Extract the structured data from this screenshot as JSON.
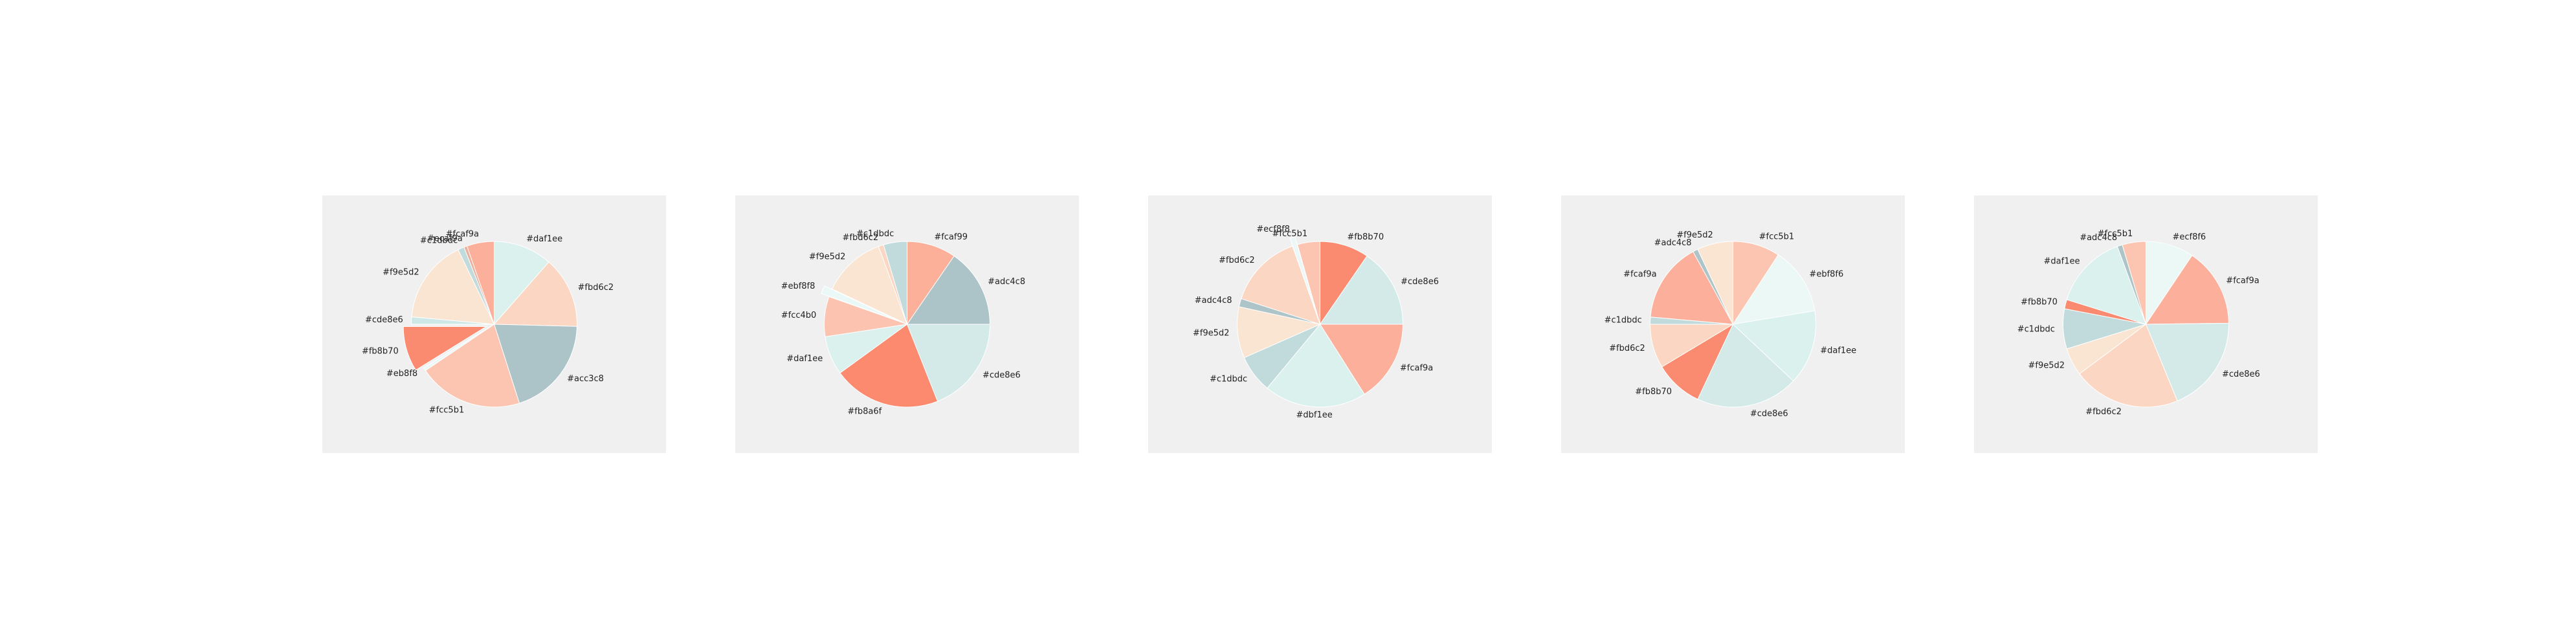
{
  "chart_data": [
    {
      "type": "pie",
      "start_angle": 90,
      "counterclock": false,
      "background": "#f0f0f0",
      "slices": [
        {
          "label": "#daf1ee",
          "value": 11.2,
          "color": "#daf1ee",
          "explode": 0
        },
        {
          "label": "#fbd6c2",
          "value": 13.6,
          "color": "#fbd6c2",
          "explode": 0
        },
        {
          "label": "#acc3c8",
          "value": 19.2,
          "color": "#acc3c8",
          "explode": 0
        },
        {
          "label": "#fcc5b1",
          "value": 20.0,
          "color": "#fcc5b1",
          "explode": 0
        },
        {
          "label": "#eb8f8",
          "value": 0.6,
          "color": "#ebf8f8",
          "explode": 0
        },
        {
          "label": "#fb8b70",
          "value": 8.6,
          "color": "#fb8b70",
          "explode": 0.1
        },
        {
          "label": "#cde8e6",
          "value": 1.4,
          "color": "#cde8e6",
          "explode": 0
        },
        {
          "label": "#f9e5d2",
          "value": 16.0,
          "color": "#f9e5d2",
          "explode": 0
        },
        {
          "label": "#c1dbdc",
          "value": 1.2,
          "color": "#c1dbdc",
          "explode": 0
        },
        {
          "label": "#ecaf9a",
          "value": 0.6,
          "color": "#ecaf9a",
          "explode": 0
        },
        {
          "label": "#fcaf9a",
          "value": 5.2,
          "color": "#fcaf9a",
          "explode": 0
        }
      ]
    },
    {
      "type": "pie",
      "start_angle": 90,
      "counterclock": false,
      "background": "#f0f0f0",
      "slices": [
        {
          "label": "#fcaf99",
          "value": 9.6,
          "color": "#fcaf99",
          "explode": 0
        },
        {
          "label": "#adc4c8",
          "value": 15.4,
          "color": "#acc3c8",
          "explode": 0
        },
        {
          "label": "#cde8e6",
          "value": 19.0,
          "color": "#d3eae8",
          "explode": 0
        },
        {
          "label": "#fb8a6f",
          "value": 21.0,
          "color": "#fb8a6f",
          "explode": 0
        },
        {
          "label": "#daf1ee",
          "value": 7.6,
          "color": "#daf1ee",
          "explode": 0
        },
        {
          "label": "#fcc4b0",
          "value": 7.8,
          "color": "#fcc4b0",
          "explode": 0
        },
        {
          "label": "#ebf8f8",
          "value": 1.6,
          "color": "#ebf8f8",
          "explode": 0.1
        },
        {
          "label": "#f9e5d2",
          "value": 12.4,
          "color": "#f9e5d2",
          "explode": 0
        },
        {
          "label": "#fbd6c2",
          "value": 1.0,
          "color": "#fbd6c2",
          "explode": 0
        },
        {
          "label": "#c1dbdc",
          "value": 4.6,
          "color": "#c1dbdc",
          "explode": 0
        }
      ]
    },
    {
      "type": "pie",
      "start_angle": 90,
      "counterclock": false,
      "background": "#f0f0f0",
      "slices": [
        {
          "label": "#fb8b70",
          "value": 9.6,
          "color": "#fb8b70",
          "explode": 0
        },
        {
          "label": "#cde8e6",
          "value": 15.4,
          "color": "#d3eae8",
          "explode": 0
        },
        {
          "label": "#fcaf9a",
          "value": 16.0,
          "color": "#fcaf9a",
          "explode": 0
        },
        {
          "label": "#dbf1ee",
          "value": 20.0,
          "color": "#dbf1ee",
          "explode": 0
        },
        {
          "label": "#c1dbdc",
          "value": 7.4,
          "color": "#c1dbdc",
          "explode": 0
        },
        {
          "label": "#f9e5d2",
          "value": 10.0,
          "color": "#f9e5d2",
          "explode": 0
        },
        {
          "label": "#adc4c8",
          "value": 1.6,
          "color": "#adc4c8",
          "explode": 0
        },
        {
          "label": "#fbd6c2",
          "value": 14.6,
          "color": "#fbd6c2",
          "explode": 0
        },
        {
          "label": "#ecf8f8",
          "value": 1.0,
          "color": "#ecf8f8",
          "explode": 0.1
        },
        {
          "label": "#fcc5b1",
          "value": 4.4,
          "color": "#fcc5b1",
          "explode": 0
        }
      ]
    },
    {
      "type": "pie",
      "start_angle": 90,
      "counterclock": false,
      "background": "#f0f0f0",
      "slices": [
        {
          "label": "#fcc5b1",
          "value": 9.2,
          "color": "#fcc5b1",
          "explode": 0
        },
        {
          "label": "#ebf8f6",
          "value": 13.2,
          "color": "#ebf8f6",
          "explode": 0
        },
        {
          "label": "#daf1ee",
          "value": 14.6,
          "color": "#daf1ee",
          "explode": 0
        },
        {
          "label": "#cde8e6",
          "value": 20.0,
          "color": "#d3eae8",
          "explode": 0
        },
        {
          "label": "#fb8b70",
          "value": 9.4,
          "color": "#fb8b70",
          "explode": 0
        },
        {
          "label": "#fbd6c2",
          "value": 8.6,
          "color": "#fbd6c2",
          "explode": 0
        },
        {
          "label": "#c1dbdc",
          "value": 1.4,
          "color": "#c1dbdc",
          "explode": 0
        },
        {
          "label": "#fcaf9a",
          "value": 15.6,
          "color": "#fcaf9a",
          "explode": 0
        },
        {
          "label": "#adc4c8",
          "value": 1.0,
          "color": "#adc4c8",
          "explode": 0
        },
        {
          "label": "#f9e5d2",
          "value": 7.0,
          "color": "#f9e5d2",
          "explode": 0
        }
      ]
    },
    {
      "type": "pie",
      "start_angle": 90,
      "counterclock": false,
      "background": "#f0f0f0",
      "slices": [
        {
          "label": "#ecf8f6",
          "value": 9.4,
          "color": "#ecf8f6",
          "explode": 0
        },
        {
          "label": "#fcaf9a",
          "value": 15.4,
          "color": "#fcaf9a",
          "explode": 0
        },
        {
          "label": "#cde8e6",
          "value": 19.0,
          "color": "#d3eae8",
          "explode": 0
        },
        {
          "label": "#fbd6c2",
          "value": 21.0,
          "color": "#fbd6c2",
          "explode": 0
        },
        {
          "label": "#f9e5d2",
          "value": 5.4,
          "color": "#f9e5d2",
          "explode": 0
        },
        {
          "label": "#c1dbdc",
          "value": 7.8,
          "color": "#c1dbdc",
          "explode": 0
        },
        {
          "label": "#fb8b70",
          "value": 1.8,
          "color": "#fb8b70",
          "explode": 0
        },
        {
          "label": "#daf1ee",
          "value": 14.6,
          "color": "#daf1ee",
          "explode": 0
        },
        {
          "label": "#adc4c8",
          "value": 1.0,
          "color": "#adc4c8",
          "explode": 0
        },
        {
          "label": "#fcc5b1",
          "value": 4.6,
          "color": "#fcc5b1",
          "explode": 0
        }
      ]
    }
  ]
}
